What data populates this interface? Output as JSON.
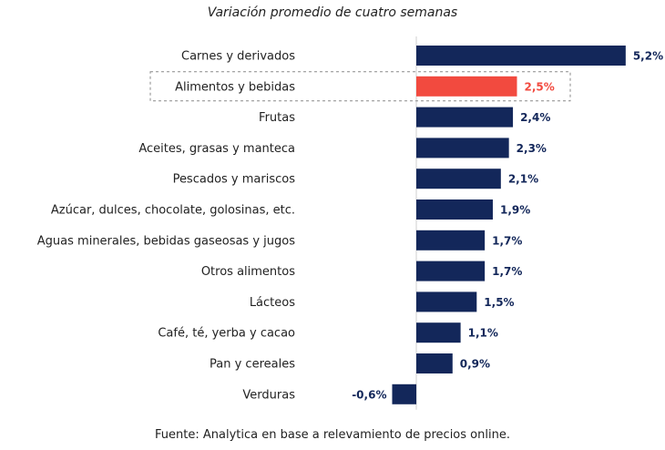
{
  "chart_data": {
    "type": "bar",
    "orientation": "horizontal",
    "title": "Variación promedio de cuatro semanas",
    "source": "Fuente: Analytica en base a relevamiento de precios online.",
    "categories": [
      "Carnes y derivados",
      "Alimentos y bebidas",
      "Frutas",
      "Aceites, grasas y manteca",
      "Pescados y mariscos",
      "Azúcar, dulces, chocolate, golosinas, etc.",
      "Aguas minerales, bebidas gaseosas y jugos",
      "Otros alimentos",
      "Lácteos",
      "Café, té, yerba y cacao",
      "Pan y cereales",
      "Verduras"
    ],
    "values": [
      5.2,
      2.5,
      2.4,
      2.3,
      2.1,
      1.9,
      1.7,
      1.7,
      1.5,
      1.1,
      0.9,
      -0.6
    ],
    "value_labels": [
      "5,2%",
      "2,5%",
      "2,4%",
      "2,3%",
      "2,1%",
      "1,9%",
      "1,7%",
      "1,7%",
      "1,5%",
      "1,1%",
      "0,9%",
      "-0,6%"
    ],
    "highlight_category": "Alimentos y bebidas",
    "colors": {
      "bar": "#13275a",
      "highlight": "#f24a3f",
      "label": "#13275a",
      "highlight_label": "#f24a3f",
      "text": "#222222",
      "axis": "#cfcfcf"
    },
    "xlim": [
      -0.6,
      5.2
    ],
    "grid": false,
    "legend": "none"
  }
}
